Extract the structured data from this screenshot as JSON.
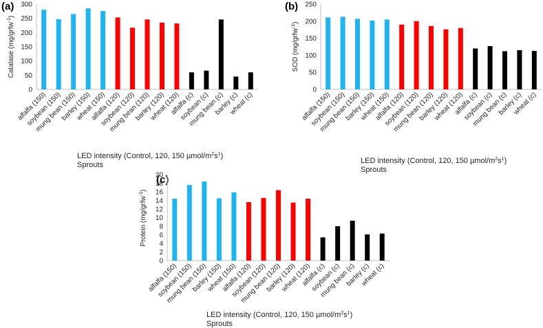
{
  "colors": {
    "c150": "#1FB4EF",
    "c120": "#FF0000",
    "control": "#000000"
  },
  "chart_data": [
    {
      "type": "bar",
      "panel": "(a)",
      "ylabel": "Catalase (mg/grfw",
      "ylabel_sup": "-1",
      "ylabel_end": ")",
      "xlabel_line1": "LED intensity (Control, 120, 150 µmol/m",
      "xlabel_sup1": "2",
      "xlabel_mid": "s",
      "xlabel_sup2": "1",
      "xlabel_end": ")",
      "xlabel_line2": "Sprouts",
      "ylim": [
        0,
        300
      ],
      "yticks": [
        "0",
        "50",
        "100",
        "150",
        "200",
        "250",
        "300"
      ],
      "categories": [
        "alfalfa (150)",
        "soybean (150)",
        "mung bean (150)",
        "barley (150)",
        "wheat (150)",
        "alfalfa (120)",
        "soybean (120)",
        "mung bean (120)",
        "barley (120)",
        "wheat (120)",
        "alfalfa (c)",
        "soybean (c)",
        "mung bean (c)",
        "barley (c)",
        "wheat (c)"
      ],
      "values": [
        280,
        247,
        265,
        285,
        276,
        253,
        217,
        246,
        235,
        232,
        60,
        66,
        246,
        45,
        60
      ],
      "groups": [
        "c150",
        "c150",
        "c150",
        "c150",
        "c150",
        "c120",
        "c120",
        "c120",
        "c120",
        "c120",
        "control",
        "control",
        "control",
        "control",
        "control"
      ]
    },
    {
      "type": "bar",
      "panel": "(b)",
      "ylabel": "SOD (mg/grfw",
      "ylabel_sup": "-1",
      "ylabel_end": ")",
      "xlabel_line1": "LED intensity (Control, 120, 150 µmol/m",
      "xlabel_sup1": "2",
      "xlabel_mid": "s",
      "xlabel_sup2": "1",
      "xlabel_end": ")",
      "xlabel_line2": "Sprouts",
      "ylim": [
        0,
        250
      ],
      "yticks": [
        "0",
        "50",
        "100",
        "150",
        "200",
        "250"
      ],
      "categories": [
        "alfalfa (150)",
        "soybean (150)",
        "mung bean (150)",
        "barley (150)",
        "wheat (150)",
        "alfalfa (120)",
        "soybean (120)",
        "mung bean (120)",
        "barley (120)",
        "wheat (120)",
        "alfalfa (c)",
        "soybean (c)",
        "mung bean (c)",
        "barley (c)",
        "wheat (c)"
      ],
      "values": [
        211,
        213,
        207,
        202,
        205,
        190,
        200,
        186,
        176,
        180,
        120,
        127,
        112,
        115,
        113
      ],
      "groups": [
        "c150",
        "c150",
        "c150",
        "c150",
        "c150",
        "c120",
        "c120",
        "c120",
        "c120",
        "c120",
        "control",
        "control",
        "control",
        "control",
        "control"
      ]
    },
    {
      "type": "bar",
      "panel": "(c)",
      "ylabel": "Protein (mg/grfw",
      "ylabel_sup": "-1",
      "ylabel_end": ")",
      "xlabel_line1": "LED intensity (Control, 120, 150 µmol/m",
      "xlabel_sup1": "2",
      "xlabel_mid": "s",
      "xlabel_sup2": "1",
      "xlabel_end": ")",
      "xlabel_line2": "Sprouts",
      "ylim": [
        0,
        20
      ],
      "yticks": [
        "0",
        "2",
        "4",
        "6",
        "8",
        "10",
        "12",
        "14",
        "16",
        "18",
        "20"
      ],
      "categories": [
        "alfalfa (150)",
        "soybean (150)",
        "mung bean (150)",
        "barley (150)",
        "wheat (150)",
        "alfalfa (120)",
        "soybean (120)",
        "mung bean (120)",
        "barley (120)",
        "wheat (120)",
        "alfalfa (c)",
        "soybean (c)",
        "mung bean (c)",
        "barley (c)",
        "wheat (c)"
      ],
      "values": [
        14.4,
        17.6,
        18.4,
        14.5,
        15.9,
        13.6,
        14.6,
        16.4,
        13.5,
        14.4,
        5.4,
        8.0,
        9.3,
        6.1,
        6.3
      ],
      "groups": [
        "c150",
        "c150",
        "c150",
        "c150",
        "c150",
        "c120",
        "c120",
        "c120",
        "c120",
        "c120",
        "control",
        "control",
        "control",
        "control",
        "control"
      ]
    }
  ]
}
